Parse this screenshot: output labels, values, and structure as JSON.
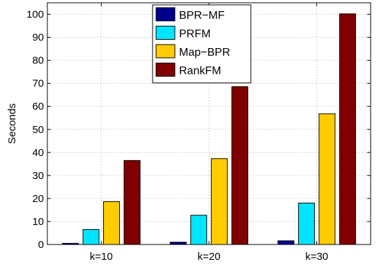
{
  "chart_data": {
    "type": "bar",
    "categories": [
      "k=10",
      "k=20",
      "k=30"
    ],
    "series": [
      {
        "name": "BPR−MF",
        "color": "#00008f",
        "values": [
          0.5,
          1.0,
          1.6
        ]
      },
      {
        "name": "PRFM",
        "color": "#00e5ff",
        "values": [
          6.5,
          12.7,
          18.0
        ]
      },
      {
        "name": "Map−BPR",
        "color": "#ffcc00",
        "values": [
          18.6,
          37.3,
          56.8
        ]
      },
      {
        "name": "RankFM",
        "color": "#800000",
        "values": [
          36.5,
          68.6,
          100.2
        ]
      }
    ],
    "ylabel": "Seconds",
    "ylim": [
      0,
      105
    ],
    "yticks": [
      0,
      10,
      20,
      30,
      40,
      50,
      60,
      70,
      80,
      90,
      100
    ],
    "grid": true,
    "legend": "top-center"
  }
}
